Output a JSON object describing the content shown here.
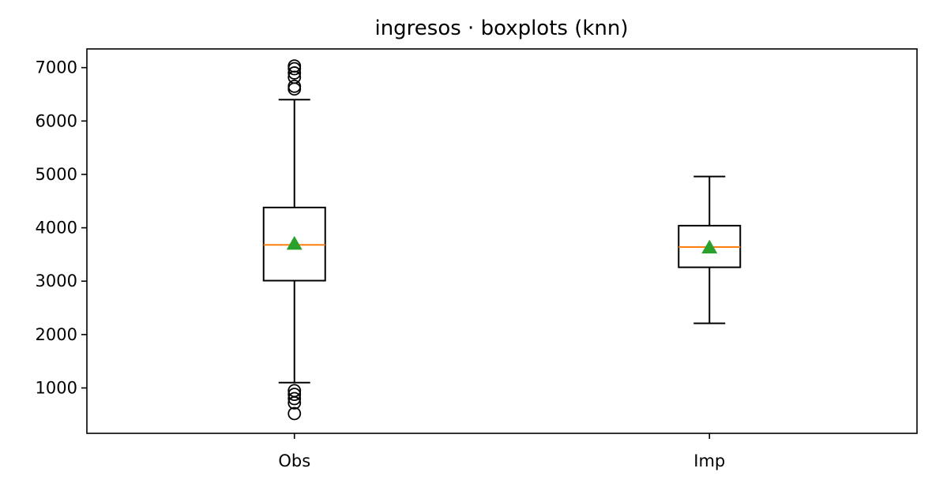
{
  "chart_data": {
    "type": "boxplot",
    "title": "ingresos · boxplots (knn)",
    "xlabel": "",
    "ylabel": "",
    "categories": [
      "Obs",
      "Imp"
    ],
    "ylim": [
      150,
      7350
    ],
    "yticks": [
      1000,
      2000,
      3000,
      4000,
      5000,
      6000,
      7000
    ],
    "grid": false,
    "colors": {
      "box": "#000000",
      "median": "#ff7f0e",
      "mean_marker": "#2ca02c",
      "flier": "#000000"
    },
    "boxes": [
      {
        "category": "Obs",
        "whisker_low": 1100,
        "q1": 3010,
        "median": 3680,
        "q3": 4380,
        "whisker_high": 6400,
        "mean": 3700,
        "fliers": [
          520,
          720,
          800,
          880,
          950,
          6600,
          6650,
          6820,
          6900,
          6980,
          7030
        ]
      },
      {
        "category": "Imp",
        "whisker_low": 2210,
        "q1": 3260,
        "median": 3640,
        "q3": 4040,
        "whisker_high": 4960,
        "mean": 3630,
        "fliers": []
      }
    ]
  }
}
